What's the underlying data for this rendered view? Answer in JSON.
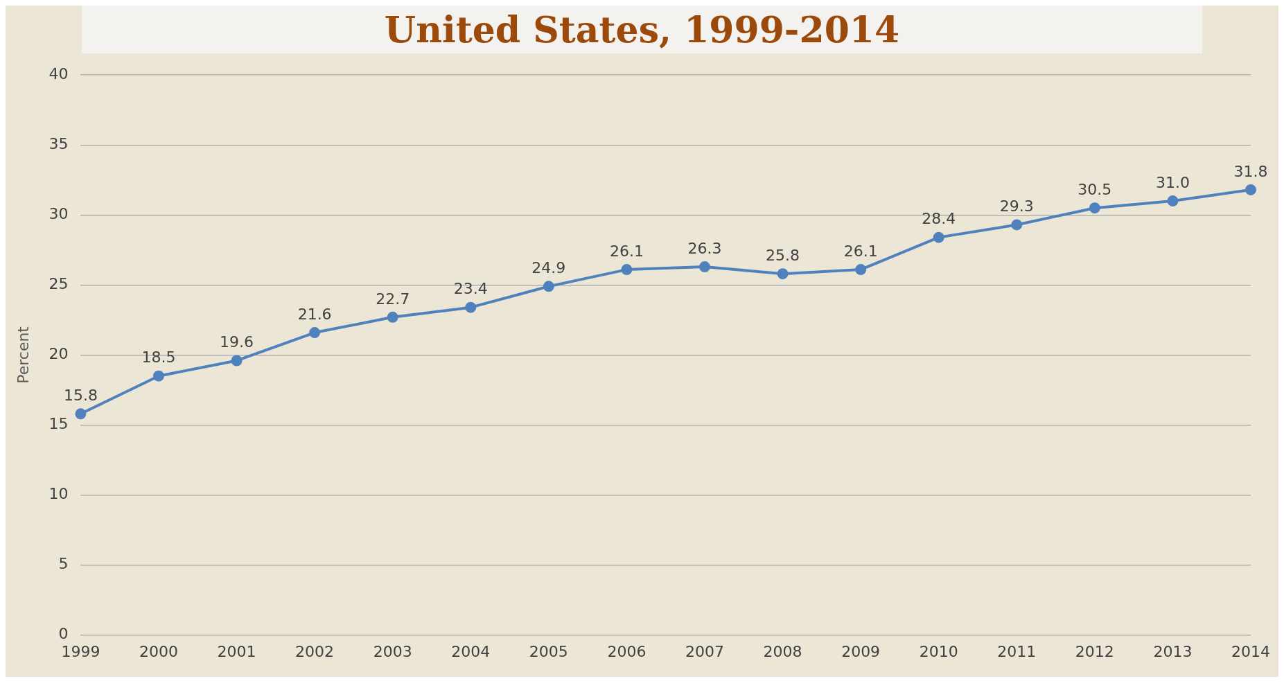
{
  "chart_data": {
    "type": "line",
    "title": "United States, 1999-2014",
    "ylabel": "Percent",
    "categories": [
      "1999",
      "2000",
      "2001",
      "2002",
      "2003",
      "2004",
      "2005",
      "2006",
      "2007",
      "2008",
      "2009",
      "2010",
      "2011",
      "2012",
      "2013",
      "2014"
    ],
    "series": [
      {
        "color": "#4f81bd",
        "values": [
          15.8,
          18.5,
          19.6,
          21.6,
          22.7,
          23.4,
          24.9,
          26.1,
          26.3,
          25.8,
          26.1,
          28.4,
          29.3,
          30.5,
          31.0,
          31.8
        ],
        "value_labels": [
          "15.8",
          "18.5",
          "19.6",
          "21.6",
          "22.7",
          "23.4",
          "24.9",
          "26.1",
          "26.3",
          "25.8",
          "26.1",
          "28.4",
          "29.3",
          "30.5",
          "31.0",
          "31.8"
        ]
      }
    ],
    "ylim": [
      0,
      40
    ],
    "yticks": [
      0,
      5,
      10,
      15,
      20,
      25,
      30,
      35,
      40
    ],
    "grid": "y",
    "legend": false,
    "marker": "circle",
    "line_style": "solid"
  }
}
